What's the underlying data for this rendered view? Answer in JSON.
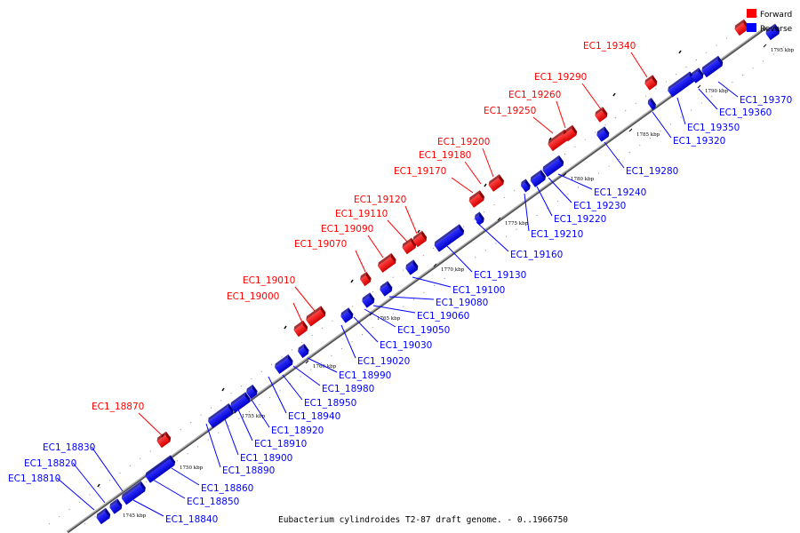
{
  "caption": "Eubacterium cylindroides T2-87 draft genome. - 0..1966750",
  "legend": [
    {
      "label": "Forward",
      "color": "#ff0000"
    },
    {
      "label": "Reverse",
      "color": "#0000ff"
    }
  ],
  "colors": {
    "forward": "#ff0000",
    "reverse": "#0000ff",
    "backbone": "#808080"
  },
  "ticks": [
    "1745 kbp",
    "1750 kbp",
    "1755 kbp",
    "1760 kbp",
    "1765 kbp",
    "1770 kbp",
    "1775 kbp",
    "1780 kbp",
    "1785 kbp",
    "1790 kbp",
    "1795 kbp"
  ],
  "forward_genes": [
    "EC1_18870",
    "EC1_19000",
    "EC1_19010",
    "EC1_19070",
    "EC1_19090",
    "EC1_19110",
    "EC1_19120",
    "EC1_19170",
    "EC1_19180",
    "EC1_19200",
    "EC1_19250",
    "EC1_19260",
    "EC1_19290",
    "EC1_19340"
  ],
  "reverse_genes": [
    "EC1_18810",
    "EC1_18820",
    "EC1_18830",
    "EC1_18840",
    "EC1_18850",
    "EC1_18860",
    "EC1_18890",
    "EC1_18900",
    "EC1_18910",
    "EC1_18920",
    "EC1_18940",
    "EC1_18950",
    "EC1_18980",
    "EC1_18990",
    "EC1_19020",
    "EC1_19030",
    "EC1_19050",
    "EC1_19060",
    "EC1_19080",
    "EC1_19100",
    "EC1_19130",
    "EC1_19160",
    "EC1_19210",
    "EC1_19220",
    "EC1_19230",
    "EC1_19240",
    "EC1_19280",
    "EC1_19320",
    "EC1_19350",
    "EC1_19360",
    "EC1_19370"
  ]
}
